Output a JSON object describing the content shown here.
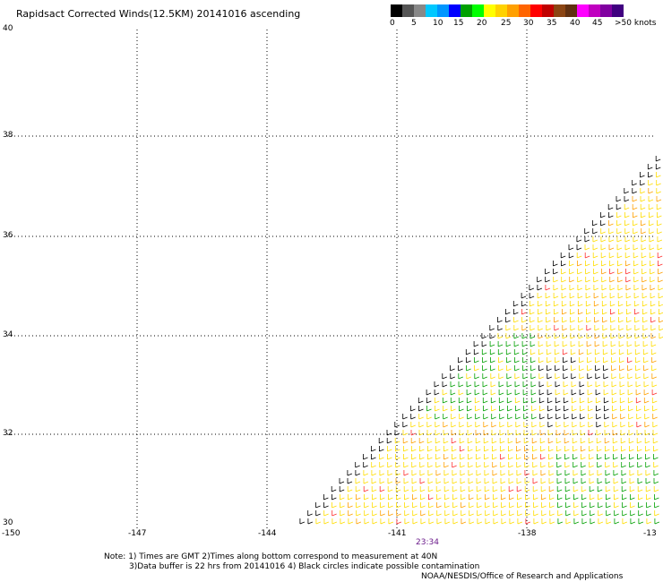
{
  "title": "Rapidsact Corrected Winds(12.5KM) 20141016 ascending",
  "colorbar": {
    "colors": [
      "#000000",
      "#555555",
      "#888888",
      "#00c8ff",
      "#0096ff",
      "#0000ff",
      "#00a000",
      "#00ff00",
      "#ffff00",
      "#ffd200",
      "#ffa000",
      "#ff6400",
      "#ff0000",
      "#c00000",
      "#8b4513",
      "#603010",
      "#ff00ff",
      "#c000c0",
      "#8000a0",
      "#400080"
    ],
    "labels": [
      "0",
      "5",
      "10",
      "15",
      "20",
      "25",
      "30",
      "35",
      "40",
      "45",
      ">50 knots"
    ]
  },
  "map": {
    "lat_labels": [
      "40",
      "38",
      "36",
      "34",
      "32",
      "30"
    ],
    "lon_labels": [
      "-150",
      "-147",
      "-144",
      "-141",
      "-138",
      "-13"
    ],
    "pass_time": "23:34",
    "swath_region": "lower-right triangle"
  },
  "notes": {
    "line1": "Note: 1) Times are GMT 2)Times along bottom correspond to measurement at 40N",
    "line2": "3)Data buffer is 22 hrs from 20141016 4) Black circles indicate possible contamination",
    "credit": "NOAA/NESDIS/Office of Research and Applications"
  }
}
